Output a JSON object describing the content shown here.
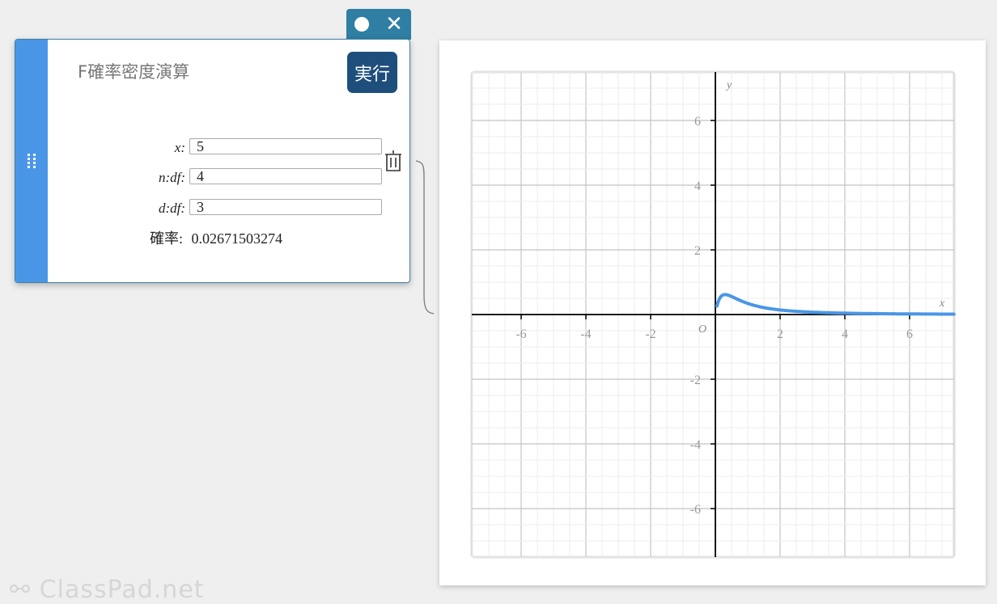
{
  "window_controls": {
    "record_icon": "circle-icon",
    "close_icon": "close-icon",
    "close_glyph": "✕"
  },
  "panel": {
    "title": "F確率密度演算",
    "run_label": "実行",
    "fields": [
      {
        "label": "x:",
        "value": "5"
      },
      {
        "label": "n:df:",
        "value": "4"
      },
      {
        "label": "d:df:",
        "value": "3"
      }
    ],
    "result_label": "確率:",
    "result_value": "0.02671503274",
    "accent_color": "#4a96e6"
  },
  "graph": {
    "x_axis_label": "x",
    "y_axis_label": "y",
    "origin_label": "O",
    "xlim": [
      -7.525,
      7.375
    ],
    "ylim": [
      -7.5,
      7.5
    ],
    "x_ticks": [
      "-6",
      "-4",
      "-2",
      "2",
      "4",
      "6"
    ],
    "y_ticks": [
      "6",
      "4",
      "2",
      "-2",
      "-4",
      "-6"
    ],
    "major_grid": 2,
    "minor_grid": 0.5,
    "curve": {
      "type": "F distribution pdf",
      "n_df": 4,
      "d_df": 3,
      "color": "#4a96e6"
    }
  },
  "footer": {
    "logo_text": "ClassPad.net"
  }
}
